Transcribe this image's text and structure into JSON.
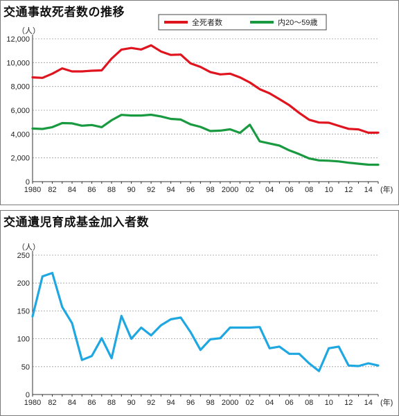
{
  "chart_data": [
    {
      "type": "line",
      "title": "交通事故死者数の推移",
      "ylabel": "（人）",
      "xlabel": "(年)",
      "ylim": [
        0,
        12000
      ],
      "yticks": [
        0,
        2000,
        4000,
        6000,
        8000,
        10000,
        12000
      ],
      "ytick_labels": [
        "0",
        "2,000",
        "4,000",
        "6,000",
        "8,000",
        "10,000",
        "12,000"
      ],
      "xticks": [
        1980,
        1982,
        1984,
        1986,
        1988,
        1990,
        1992,
        1994,
        1996,
        1998,
        2000,
        2002,
        2004,
        2006,
        2008,
        2010,
        2012,
        2014
      ],
      "xtick_labels": [
        "1980",
        "82",
        "84",
        "86",
        "88",
        "90",
        "92",
        "94",
        "96",
        "98",
        "2000",
        "02",
        "04",
        "06",
        "08",
        "10",
        "12",
        "14"
      ],
      "x": [
        1980,
        1981,
        1982,
        1983,
        1984,
        1985,
        1986,
        1987,
        1988,
        1989,
        1990,
        1991,
        1992,
        1993,
        1994,
        1995,
        1996,
        1997,
        1998,
        1999,
        2000,
        2001,
        2002,
        2003,
        2004,
        2005,
        2006,
        2007,
        2008,
        2009,
        2010,
        2011,
        2012,
        2013,
        2014,
        2015
      ],
      "legend_position": "top-right",
      "series": [
        {
          "name": "全死者数",
          "color": "#e0141e",
          "values": [
            8760,
            8720,
            9070,
            9520,
            9260,
            9260,
            9320,
            9350,
            10340,
            11090,
            11230,
            11100,
            11450,
            10940,
            10650,
            10680,
            9940,
            9640,
            9210,
            9010,
            9070,
            8760,
            8330,
            7770,
            7420,
            6930,
            6420,
            5780,
            5200,
            4970,
            4950,
            4690,
            4440,
            4390,
            4110,
            4120
          ]
        },
        {
          "name": "内20～59歳",
          "color": "#1a9a40",
          "values": [
            4460,
            4430,
            4580,
            4920,
            4900,
            4700,
            4760,
            4580,
            5160,
            5610,
            5560,
            5560,
            5620,
            5480,
            5270,
            5220,
            4820,
            4600,
            4250,
            4290,
            4400,
            4100,
            4780,
            3390,
            3210,
            3030,
            2630,
            2310,
            1950,
            1790,
            1760,
            1700,
            1590,
            1510,
            1430,
            1420
          ]
        }
      ]
    },
    {
      "type": "line",
      "title": "交通遺児育成基金加入者数",
      "ylabel": "（人）",
      "xlabel": "(年)",
      "ylim": [
        0,
        250
      ],
      "yticks": [
        0,
        50,
        100,
        150,
        200,
        250
      ],
      "ytick_labels": [
        "0",
        "50",
        "100",
        "150",
        "200",
        "250"
      ],
      "xticks": [
        1980,
        1982,
        1984,
        1986,
        1988,
        1990,
        1992,
        1994,
        1996,
        1998,
        2000,
        2002,
        2004,
        2006,
        2008,
        2010,
        2012,
        2014
      ],
      "xtick_labels": [
        "1980",
        "82",
        "84",
        "86",
        "88",
        "90",
        "92",
        "94",
        "96",
        "98",
        "2000",
        "02",
        "04",
        "06",
        "08",
        "10",
        "12",
        "14"
      ],
      "x": [
        1980,
        1981,
        1982,
        1983,
        1984,
        1985,
        1986,
        1987,
        1988,
        1989,
        1990,
        1991,
        1992,
        1993,
        1994,
        1995,
        1996,
        1997,
        1998,
        1999,
        2000,
        2001,
        2002,
        2003,
        2004,
        2005,
        2006,
        2007,
        2008,
        2009,
        2010,
        2011,
        2012,
        2013,
        2014,
        2015
      ],
      "series": [
        {
          "color": "#1ea7e1",
          "values": [
            140,
            212,
            218,
            157,
            128,
            62,
            69,
            101,
            65,
            141,
            100,
            120,
            106,
            124,
            135,
            138,
            112,
            80,
            99,
            101,
            120,
            120,
            120,
            121,
            83,
            86,
            73,
            73,
            56,
            42,
            83,
            86,
            52,
            51,
            56,
            52
          ]
        }
      ]
    }
  ]
}
